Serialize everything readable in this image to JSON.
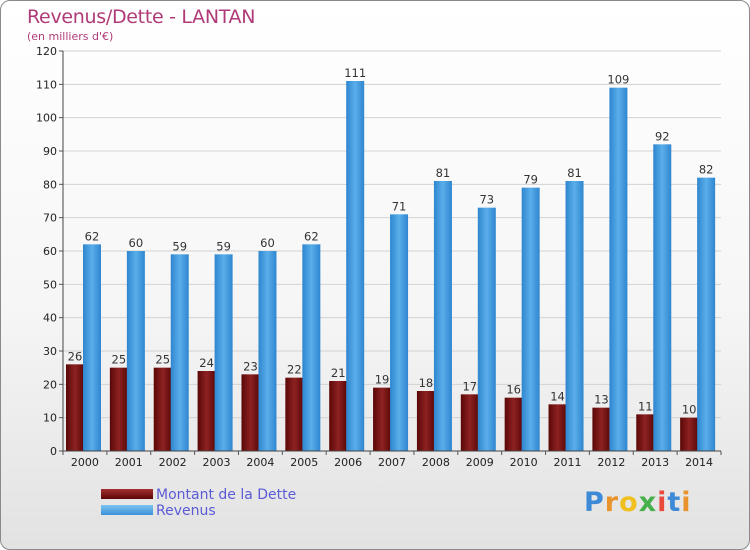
{
  "header": {
    "title": "Revenus/Dette - LANTAN",
    "subtitle": "(en milliers d'€)"
  },
  "chart_data": {
    "type": "bar",
    "title": "Revenus/Dette - LANTAN",
    "subtitle": "(en milliers d'€)",
    "categories": [
      "2000",
      "2001",
      "2002",
      "2003",
      "2004",
      "2005",
      "2006",
      "2007",
      "2008",
      "2009",
      "2010",
      "2011",
      "2012",
      "2013",
      "2014"
    ],
    "series": [
      {
        "name": "Montant de la Dette",
        "values": [
          26,
          25,
          25,
          24,
          23,
          22,
          21,
          19,
          18,
          17,
          16,
          14,
          13,
          11,
          10
        ],
        "color": "#7a1616"
      },
      {
        "name": "Revenus",
        "values": [
          62,
          60,
          59,
          59,
          60,
          62,
          111,
          71,
          81,
          73,
          79,
          81,
          109,
          92,
          82
        ],
        "color": "#4fa3e3"
      }
    ],
    "ylim": [
      0,
      120
    ],
    "yticks": [
      0,
      10,
      20,
      30,
      40,
      50,
      60,
      70,
      80,
      90,
      100,
      110,
      120
    ],
    "grid": true,
    "legend_position": "bottom-left"
  },
  "legend": {
    "items": [
      {
        "label": "Montant de la Dette"
      },
      {
        "label": "Revenus"
      }
    ]
  },
  "logo": {
    "letters": [
      "P",
      "r",
      "o",
      "x",
      "i",
      "t",
      "i"
    ],
    "colors": [
      "#3e8ad6",
      "#e8932b",
      "#f0c020",
      "#46b04a",
      "#e94a3c",
      "#3e8ad6",
      "#e8932b"
    ]
  }
}
